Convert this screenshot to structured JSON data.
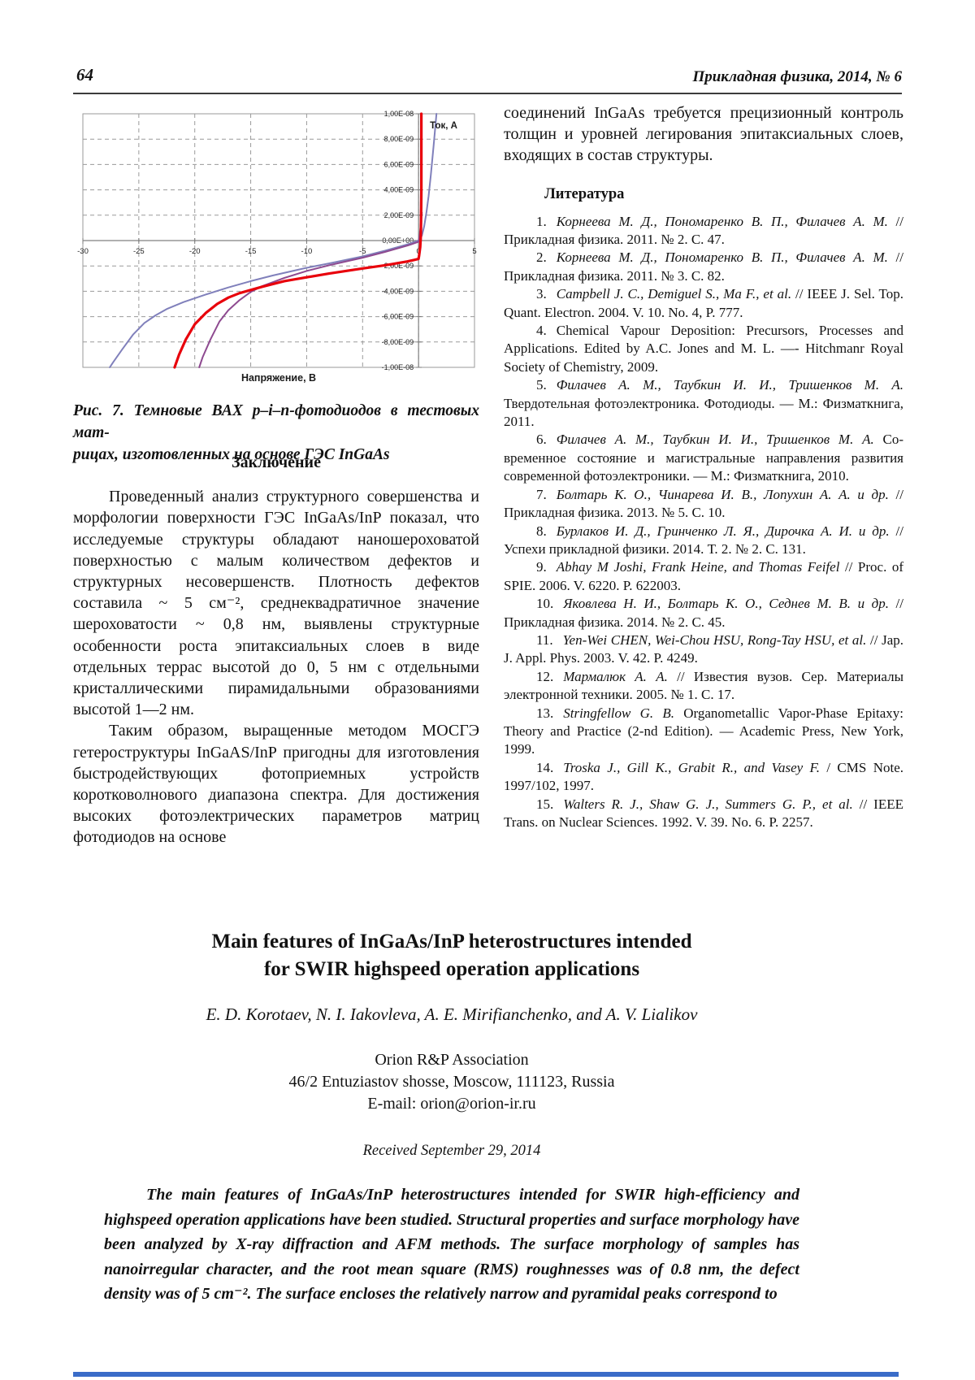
{
  "page": {
    "page_number": "64",
    "journal_header": "Прикладная физика, 2014, № 6"
  },
  "left_column": {
    "caption_line1": "Рис. 7. Темновые ВАХ p–i–n-фотодиодов в тестовых мат-",
    "caption_line2": "рицах, изготовленных на основе ГЭС InGaAs",
    "conclusion_heading": "Заключение",
    "conclusion_p1": "Проведенный анализ структурного совершен­ства и морфологии поверхности ГЭС InGaAs/InP показал, что исследуемые структуры обладают наношероховатой поверхностью с малым количе­ством дефектов и структурных несовершенств. Плотность дефектов составила ~ 5 см⁻², средне­квадратичное значение шероховатости ~ 0,8 нм, выявлены структурные особенности роста эпитак­сиальных слоев в виде отдельных террас высотой до 0, 5 нм с отдельными кристаллическими пира­мидальными образованиями высотой 1—2 нм.",
    "conclusion_p2": "Таким образом, выращенные методом МОСГЭ гетероструктуры InGaAS/InP пригодны для изготовления быстродействующих фотопри­емных устройств коротковолнового диапазона спектра. Для достижения высоких фотоэлектриче­ских параметров матриц фотодиодов на основе"
  },
  "right_column": {
    "intro_paragraph": "соединений InGaAs требуется прецизионный кон­троль толщин и уровней легирования эпитакси­альных слоев, входящих в состав структуры.",
    "references_heading": "Литература",
    "references": [
      {
        "num": "1.",
        "authors": "Корнеева М. Д., Пономаренко В. П., Филачев А. М.",
        "text": "// Прикладная физика. 2011. № 2. С. 47."
      },
      {
        "num": "2.",
        "authors": "Корнеева М. Д., Пономаренко В. П., Филачев А. М.",
        "text": "// Прикладная физика. 2011. № 3. С. 82."
      },
      {
        "num": "3.",
        "authors": "Campbell J. C., Demiguel S., Ma F., et al.",
        "text": "// IEEE J. Sel. Top. Quant. Electron. 2004. V. 10. No. 4, P. 777."
      },
      {
        "num": "4.",
        "authors": "",
        "text": "Chemical Vapour Deposition: Precursors, Processes and Applications. Edited by A.C. Jones and M. L. —- Hitchmanr Royal Society of Chemistry, 2009."
      },
      {
        "num": "5.",
        "authors": "Филачев А. М., Таубкин И. И., Тришенков М. А.",
        "text": "Твердотельная фотоэлектроника. Фотодиоды. — М.: Физмат­книга, 2011."
      },
      {
        "num": "6.",
        "authors": "Филачев А. М., Таубкин И. И., Тришенков М. А.",
        "text": "Со­временное состояние и магистральные направления развития современной фотоэлектроники. — М.: Физматкнига, 2010."
      },
      {
        "num": "7.",
        "authors": "Болтарь К. О., Чинарева И. В., Лопухин А. А. и др.",
        "text": "// Прикладная физика. 2013. № 5. С. 10."
      },
      {
        "num": "8.",
        "authors": "Бурлаков И. Д., Гринченко Л. Я., Дирочка А. И. и др.",
        "text": "// Успехи прикладной физики. 2014. Т. 2.  № 2. С. 131."
      },
      {
        "num": "9.",
        "authors": "Abhay M Joshi, Frank Heine, and Thomas Feifel",
        "text": "// Proc. of SPIE. 2006. V. 6220. P. 622003."
      },
      {
        "num": "10.",
        "authors": "Яковлева Н. И., Болтарь К. О., Седнев М. В. и др.",
        "text": "// Прикладная физика. 2014. № 2. С. 45."
      },
      {
        "num": "11.",
        "authors": "Yen-Wei CHEN, Wei-Chou HSU, Rong-Tay HSU, et al.",
        "text": "// Jap. J. Appl. Phys. 2003. V. 42.  P. 4249."
      },
      {
        "num": "12.",
        "authors": "Мармалюк А. А.",
        "text": "// Известия вузов. Сер. Материалы электронной техники. 2005. №  1. С. 17."
      },
      {
        "num": "13.",
        "authors": "Stringfellow G. B.",
        "text": "Organometallic Vapor-Phase Epitaxy: Theory and Practice (2-nd Edition). — Academic Press, New York, 1999."
      },
      {
        "num": "14.",
        "authors": "Troska J., Gill K., Grabit R., and Vasey F.",
        "text": "/ CMS Note. 1997/102, 1997."
      },
      {
        "num": "15.",
        "authors": "Walters R. J., Shaw G. J., Summers G. P., et al.",
        "text": "// IEEE Trans. on Nuclear Sciences. 1992. V. 39. No. 6. P. 2257."
      }
    ]
  },
  "english_section": {
    "title_line1": "Main features of InGaAs/InP heterostructures intended",
    "title_line2": "for SWIR highspeed operation applications",
    "authors": "E. D. Korotaev, N. I. Iakovleva, A. E. Mirifianchenko, and A. V. Lialikov",
    "affiliation": "Orion R&P Association",
    "address": "46/2 Entuziastov shosse, Moscow, 111123, Russia",
    "email": "E-mail: orion@orion-ir.ru",
    "received": "Received September 29, 2014",
    "abstract": "The main features of InGaAs/InP heterostructures intended for SWIR high-efficiency and highspeed operation applications have been studied. Structural properties and surface morphology have been analyzed by X-ray diffraction and AFM methods. The surface morphology of samples has nanoirregular character, and the root mean square (RMS) roughnesses was of 0.8 nm, the defect density was of 5 cm⁻². The surface encloses the relatively narrow and pyramidal peaks correspond to"
  },
  "chart_data": {
    "type": "line",
    "title": "",
    "xlabel": "Напряжение, В",
    "ylabel": "Ток, А",
    "legend_label": "Ток, А",
    "xlim": [
      -30,
      5
    ],
    "ylim": [
      -1e-08,
      1e-08
    ],
    "grid": true,
    "x_ticks": [
      -30,
      -25,
      -20,
      -15,
      -10,
      -5,
      0,
      5
    ],
    "y_tick_labels": [
      "1,00E-08",
      "8,00E-09",
      "6,00E-09",
      "4,00E-09",
      "2,00E-09",
      "0,00E+00",
      "-2,00E-09",
      "-4,00E-09",
      "-6,00E-09",
      "-8,00E-09",
      "-1,00E-08"
    ],
    "series": [
      {
        "name": "photodiode-blue",
        "color": "#8080bb",
        "width": 2,
        "points": [
          [
            1.6,
            1e-08
          ],
          [
            1.35,
            7.5e-09
          ],
          [
            1.1,
            5.2e-09
          ],
          [
            0.9,
            3.5e-09
          ],
          [
            0.7,
            2.2e-09
          ],
          [
            0.5,
            1.1e-09
          ],
          [
            0.3,
            4e-10
          ],
          [
            0.1,
            1e-10
          ],
          [
            0,
            0
          ],
          [
            -1,
            -3e-10
          ],
          [
            -3,
            -8e-10
          ],
          [
            -5,
            -1.25e-09
          ],
          [
            -8,
            -1.8e-09
          ],
          [
            -10,
            -2.15e-09
          ],
          [
            -13,
            -2.75e-09
          ],
          [
            -15,
            -3.2e-09
          ],
          [
            -17,
            -3.7e-09
          ],
          [
            -19,
            -4.25e-09
          ],
          [
            -21,
            -4.85e-09
          ],
          [
            -22.5,
            -5.4e-09
          ],
          [
            -23.5,
            -5.9e-09
          ],
          [
            -24.5,
            -6.5e-09
          ],
          [
            -25.5,
            -7.4e-09
          ],
          [
            -26.5,
            -8.6e-09
          ],
          [
            -27.3,
            -9.6e-09
          ],
          [
            -27.6,
            -1e-08
          ]
        ]
      },
      {
        "name": "photodiode-purple",
        "color": "#8e4a90",
        "width": 2,
        "points": [
          [
            0.3,
            2.2e-09
          ],
          [
            0.1,
            4e-10
          ],
          [
            0,
            -1e-10
          ],
          [
            -1,
            -4e-10
          ],
          [
            -3,
            -9e-10
          ],
          [
            -5,
            -1.35e-09
          ],
          [
            -8,
            -1.95e-09
          ],
          [
            -10,
            -2.4e-09
          ],
          [
            -12,
            -2.95e-09
          ],
          [
            -14,
            -3.6e-09
          ],
          [
            -15,
            -4.05e-09
          ],
          [
            -16,
            -4.7e-09
          ],
          [
            -17,
            -5.5e-09
          ],
          [
            -17.8,
            -6.4e-09
          ],
          [
            -18.6,
            -7.8e-09
          ],
          [
            -19.3,
            -9.2e-09
          ],
          [
            -19.6,
            -1e-08
          ]
        ]
      },
      {
        "name": "photodiode-red",
        "color": "#e8000b",
        "width": 3.2,
        "points": [
          [
            0.25,
            1e-08
          ],
          [
            0.25,
            4e-09
          ],
          [
            0.22,
            1.5e-09
          ],
          [
            0.2,
            3e-10
          ],
          [
            0.15,
            -5e-10
          ],
          [
            0.05,
            -1.2e-09
          ],
          [
            0,
            -1.45e-09
          ],
          [
            -1,
            -1.65e-09
          ],
          [
            -3,
            -1.95e-09
          ],
          [
            -5,
            -2.2e-09
          ],
          [
            -8,
            -2.6e-09
          ],
          [
            -10,
            -2.9e-09
          ],
          [
            -12,
            -3.2e-09
          ],
          [
            -14,
            -3.65e-09
          ],
          [
            -16,
            -4.15e-09
          ],
          [
            -17,
            -4.5e-09
          ],
          [
            -18,
            -5e-09
          ],
          [
            -19,
            -5.7e-09
          ],
          [
            -20,
            -6.6e-09
          ],
          [
            -20.8,
            -7.8e-09
          ],
          [
            -21.4,
            -9e-09
          ],
          [
            -21.8,
            -1e-08
          ]
        ]
      }
    ]
  }
}
